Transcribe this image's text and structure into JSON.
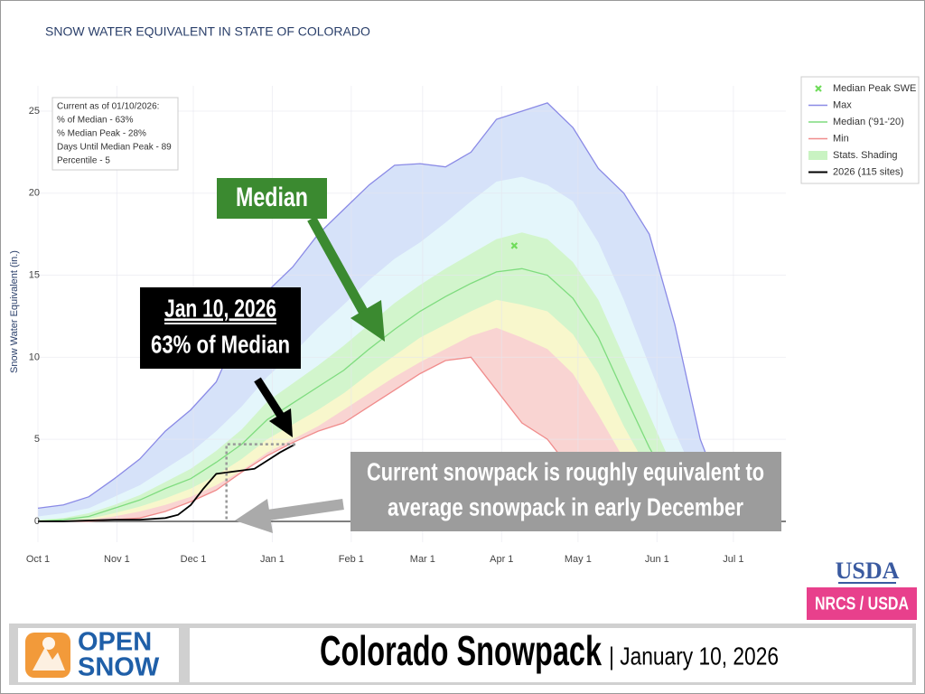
{
  "chart_data": {
    "type": "area",
    "title": "SNOW WATER EQUIVALENT IN STATE OF COLORADO",
    "y_label": "Snow Water Equivalent (in.)",
    "x": [
      0,
      10,
      20,
      30,
      40,
      50,
      60,
      70,
      80,
      90,
      100,
      110,
      120,
      130,
      140,
      150,
      160,
      170,
      180,
      190,
      200,
      210,
      220,
      230,
      240,
      250,
      260,
      270,
      280,
      290
    ],
    "xlim": [
      0,
      293.6
    ],
    "xticks": [
      {
        "value": 0,
        "label": "Oct 1"
      },
      {
        "value": 31,
        "label": "Nov 1"
      },
      {
        "value": 61,
        "label": "Dec 1"
      },
      {
        "value": 92,
        "label": "Jan 1"
      },
      {
        "value": 123,
        "label": "Feb 1"
      },
      {
        "value": 151,
        "label": "Mar 1"
      },
      {
        "value": 182,
        "label": "Apr 1"
      },
      {
        "value": 212,
        "label": "May 1"
      },
      {
        "value": 243,
        "label": "Jun 1"
      },
      {
        "value": 273,
        "label": "Jul 1"
      }
    ],
    "ylim": [
      -1.27,
      26.54
    ],
    "yticks": [
      0,
      5,
      10,
      15,
      20,
      25
    ],
    "grid": true,
    "series": [
      {
        "name": "Max",
        "color": "#8a8ae6",
        "fill": "#d6e2f9",
        "values": [
          0.8,
          1.0,
          1.5,
          2.6,
          3.8,
          5.5,
          6.8,
          8.5,
          12.0,
          14.0,
          15.5,
          17.5,
          19.0,
          20.5,
          21.7,
          21.8,
          21.6,
          22.5,
          24.5,
          25.0,
          25.5,
          24.0,
          21.5,
          20.0,
          17.5,
          12.0,
          5.0,
          1.0,
          0,
          0
        ]
      },
      {
        "name": "Median ('91-'20)",
        "color": "#7fdc7f",
        "values": [
          0,
          0.1,
          0.3,
          0.8,
          1.3,
          2.0,
          2.6,
          3.6,
          4.7,
          6.2,
          7.2,
          8.2,
          9.2,
          10.5,
          11.7,
          12.8,
          13.7,
          14.5,
          15.2,
          15.4,
          15.0,
          13.6,
          11.2,
          7.8,
          4.5,
          1.8,
          0.5,
          0.1,
          0,
          0
        ]
      },
      {
        "name": "Min",
        "color": "#f08c8c",
        "fill": "#ffffff",
        "values": [
          0,
          0,
          0,
          0.1,
          0.2,
          0.6,
          1.2,
          1.9,
          3.0,
          4.0,
          4.8,
          5.5,
          6.0,
          7.0,
          8.0,
          9.0,
          9.8,
          10.0,
          8.0,
          6.0,
          5.0,
          3.0,
          1.5,
          0.5,
          0,
          0,
          0,
          0,
          0,
          0
        ]
      },
      {
        "name": "2026 (115 sites)",
        "color": "#000000",
        "x": [
          0,
          10,
          20,
          30,
          40,
          50,
          55,
          60,
          65,
          70,
          75,
          80,
          85,
          90,
          95,
          101
        ],
        "values": [
          0,
          0,
          0.05,
          0.1,
          0.1,
          0.2,
          0.4,
          1.0,
          2.0,
          2.9,
          3.0,
          3.1,
          3.2,
          3.7,
          4.2,
          4.7
        ]
      }
    ],
    "shading": {
      "name": "Stats. Shading",
      "color": "#c9f3c2",
      "bounds": [
        {
          "color": "#e4f6fb",
          "values": [
            0.3,
            0.5,
            0.8,
            1.5,
            2.2,
            3.2,
            4.2,
            5.5,
            7.0,
            8.8,
            10.2,
            11.8,
            13.2,
            14.7,
            16.0,
            17.0,
            18.2,
            19.5,
            20.7,
            21.0,
            20.5,
            19.5,
            17.0,
            13.5,
            9.5,
            5.5,
            2.0,
            0.5,
            0,
            0
          ]
        },
        {
          "color": "#d2f5cc",
          "values": [
            0.1,
            0.2,
            0.5,
            1.0,
            1.6,
            2.4,
            3.2,
            4.3,
            5.6,
            7.3,
            8.4,
            9.5,
            10.7,
            12.0,
            13.3,
            14.4,
            15.4,
            16.3,
            17.2,
            17.6,
            17.2,
            15.8,
            13.5,
            10.0,
            6.5,
            3.0,
            1.0,
            0.2,
            0,
            0
          ]
        },
        {
          "color": "#f8f7cc",
          "values": [
            0,
            0.05,
            0.15,
            0.5,
            0.9,
            1.4,
            2.0,
            2.8,
            3.8,
            5.0,
            5.9,
            6.8,
            7.8,
            9.0,
            10.1,
            11.2,
            12.0,
            12.8,
            13.5,
            13.2,
            12.8,
            11.4,
            9.0,
            5.8,
            3.0,
            1.0,
            0.2,
            0,
            0,
            0
          ]
        },
        {
          "color": "#f9d4d2",
          "values": [
            0,
            0,
            0.1,
            0.3,
            0.6,
            1.0,
            1.5,
            2.2,
            3.1,
            4.2,
            5.0,
            5.8,
            6.8,
            7.8,
            8.8,
            9.7,
            10.5,
            11.3,
            11.8,
            11.2,
            10.5,
            9.0,
            6.5,
            3.8,
            1.5,
            0.3,
            0,
            0,
            0,
            0
          ]
        }
      ]
    },
    "median_peak": {
      "name": "Median Peak SWE",
      "x": 187,
      "y": 16.8,
      "color": "#6fdc5a"
    },
    "guide": {
      "x": 74,
      "y": 4.7
    },
    "info_box": [
      "Current as of 01/10/2026:",
      "% of Median - 63%",
      "% Median Peak - 28%",
      "Days Until Median Peak - 89",
      "Percentile - 5"
    ],
    "annotations": {
      "median": "Median",
      "date": "Jan 10, 2026",
      "percent": "63% of Median",
      "note": [
        "Current snowpack is roughly equivalent to",
        "average snowpack in early December"
      ]
    }
  },
  "footer": {
    "brand_top": "OPEN",
    "brand_bottom": "SNOW",
    "title": "Colorado Snowpack",
    "subtitle": "| January 10, 2026"
  },
  "source": {
    "logo": "USDA",
    "badge": "NRCS / USDA"
  }
}
